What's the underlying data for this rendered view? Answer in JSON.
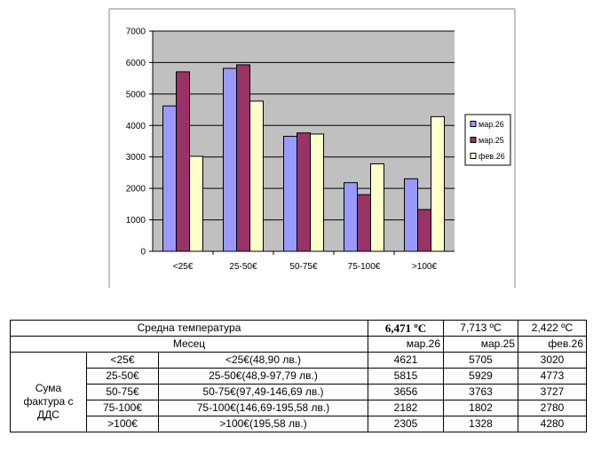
{
  "chart_data": {
    "type": "bar",
    "categories": [
      "<25€",
      "25-50€",
      "50-75€",
      "75-100€",
      ">100€"
    ],
    "series": [
      {
        "name": "мар.26",
        "values": [
          4621,
          5815,
          3656,
          2182,
          2305
        ],
        "color": "#9999ff"
      },
      {
        "name": "мар.25",
        "values": [
          5705,
          5929,
          3763,
          1802,
          1328
        ],
        "color": "#993366"
      },
      {
        "name": "фев.26",
        "values": [
          3020,
          4773,
          3727,
          2780,
          4280
        ],
        "color": "#ffffcc"
      }
    ],
    "title": "",
    "xlabel": "",
    "ylabel": "",
    "ylim": [
      0,
      7000
    ],
    "yticks": [
      "0",
      "1000",
      "2000",
      "3000",
      "4000",
      "5000",
      "6000",
      "7000"
    ],
    "grid": true,
    "plot_background": "#c0c0c0",
    "legend_position": "right"
  },
  "table": {
    "temp_label": "Средна температура",
    "temps": [
      "6,471 ºC",
      "7,713 ºC",
      "2,422 ºC"
    ],
    "month_label": "Месец",
    "months": [
      "мар.26",
      "мар.25",
      "фев.26"
    ],
    "group_label": "Сума фактура с ДДС",
    "rows": [
      {
        "short": "<25€",
        "long": "<25€(48,90 лв.)",
        "values": [
          "4621",
          "5705",
          "3020"
        ]
      },
      {
        "short": "25-50€",
        "long": "25-50€(48,9-97,79 лв.)",
        "values": [
          "5815",
          "5929",
          "4773"
        ]
      },
      {
        "short": "50-75€",
        "long": "50-75€(97,49-146,69 лв.)",
        "values": [
          "3656",
          "3763",
          "3727"
        ]
      },
      {
        "short": "75-100€",
        "long": "75-100€(146,69-195,58 лв.)",
        "values": [
          "2182",
          "1802",
          "2780"
        ]
      },
      {
        "short": ">100€",
        "long": ">100€(195,58 лв.)",
        "values": [
          "2305",
          "1328",
          "4280"
        ]
      }
    ]
  }
}
